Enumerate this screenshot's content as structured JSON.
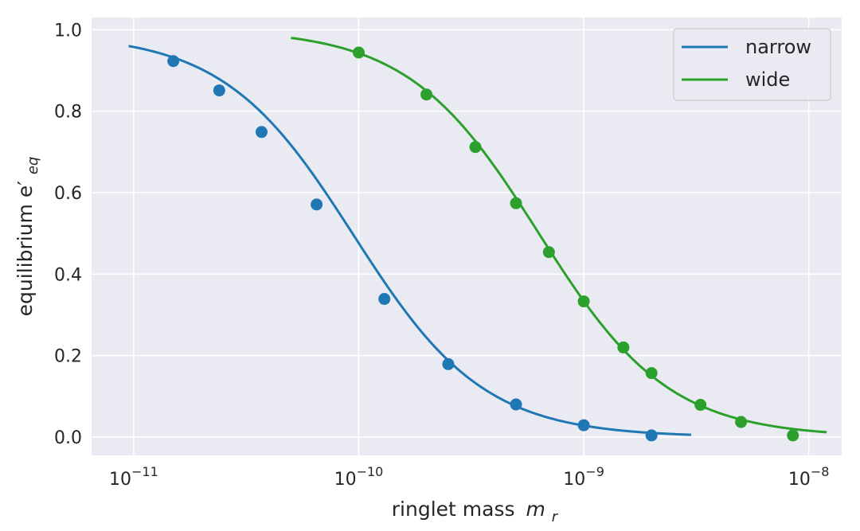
{
  "chart_data": {
    "type": "line",
    "title": "",
    "xlabel": "ringlet mass",
    "xlabel_math": "m",
    "xlabel_sub": "r",
    "ylabel": "equilibrium e′",
    "ylabel_sub": "eq",
    "x_scale": "log",
    "xlim": [
      6.5e-12,
      1.4e-08
    ],
    "ylim": [
      -0.045,
      1.03
    ],
    "x_ticks": [
      {
        "value": 1e-11,
        "base": "10",
        "exp": "−11"
      },
      {
        "value": 1e-10,
        "base": "10",
        "exp": "−10"
      },
      {
        "value": 1e-09,
        "base": "10",
        "exp": "−9"
      },
      {
        "value": 1e-08,
        "base": "10",
        "exp": "−8"
      }
    ],
    "y_ticks": [
      {
        "value": 0.0,
        "label": "0.0"
      },
      {
        "value": 0.2,
        "label": "0.2"
      },
      {
        "value": 0.4,
        "label": "0.4"
      },
      {
        "value": 0.6,
        "label": "0.6"
      },
      {
        "value": 0.8,
        "label": "0.8"
      },
      {
        "value": 1.0,
        "label": "1.0"
      }
    ],
    "grid": true,
    "legend_position": "top-right",
    "series": [
      {
        "name": "narrow",
        "color": "#1f77b4",
        "curve": {
          "x_start": 9.5e-12,
          "x_end": 3e-09,
          "x_half": 9.5e-11,
          "slope": 1.5,
          "x_ref": 9.5e-12,
          "y_ref": 0.96
        },
        "points": [
          {
            "x": 1.5e-11,
            "y": 0.923
          },
          {
            "x": 2.4e-11,
            "y": 0.851
          },
          {
            "x": 3.7e-11,
            "y": 0.749
          },
          {
            "x": 6.5e-11,
            "y": 0.571
          },
          {
            "x": 1.3e-10,
            "y": 0.339
          },
          {
            "x": 2.5e-10,
            "y": 0.179
          },
          {
            "x": 5e-10,
            "y": 0.08
          },
          {
            "x": 1e-09,
            "y": 0.029
          },
          {
            "x": 2e-09,
            "y": 0.004
          }
        ]
      },
      {
        "name": "wide",
        "color": "#2ca02c",
        "curve": {
          "x_start": 5e-11,
          "x_end": 1.2e-08,
          "x_half": 6.3e-10,
          "slope": 1.5,
          "x_ref": 5e-11,
          "y_ref": 0.98
        },
        "points": [
          {
            "x": 1e-10,
            "y": 0.944
          },
          {
            "x": 2e-10,
            "y": 0.841
          },
          {
            "x": 3.3e-10,
            "y": 0.712
          },
          {
            "x": 5e-10,
            "y": 0.574
          },
          {
            "x": 7e-10,
            "y": 0.454
          },
          {
            "x": 1e-09,
            "y": 0.333
          },
          {
            "x": 1.5e-09,
            "y": 0.22
          },
          {
            "x": 2e-09,
            "y": 0.157
          },
          {
            "x": 3.3e-09,
            "y": 0.079
          },
          {
            "x": 5e-09,
            "y": 0.037
          },
          {
            "x": 8.5e-09,
            "y": 0.004
          }
        ]
      }
    ]
  }
}
